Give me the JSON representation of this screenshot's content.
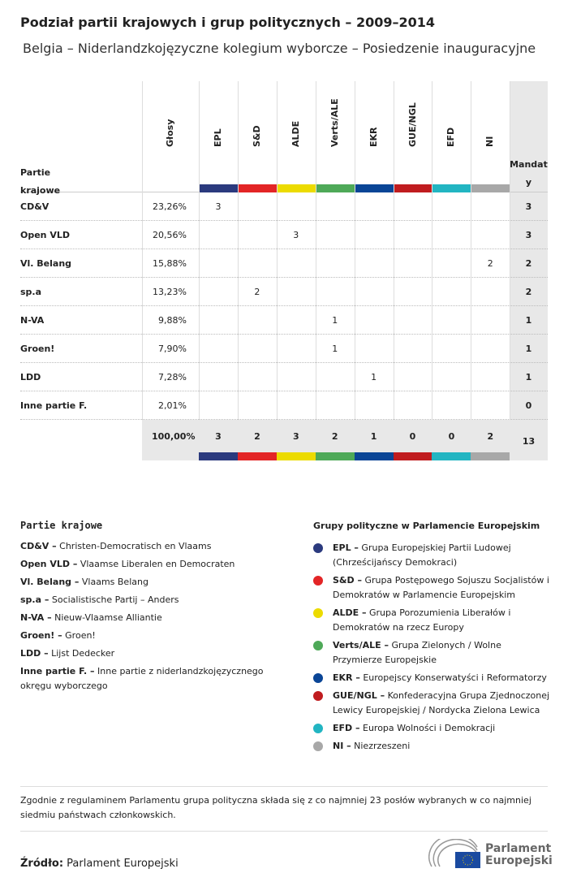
{
  "title": "Podział partii krajowych i grup politycznych – 2009–2014",
  "subtitle": "Belgia – Niderlandzkojęzyczne kolegium wyborcze – Posiedzenie inauguracyjne",
  "table": {
    "col_party": "Partie krajowe",
    "col_votes": "Głosy",
    "col_seats": "Mandaty",
    "groups": [
      {
        "name": "EPL",
        "color": "#2b3a7e"
      },
      {
        "name": "S&D",
        "color": "#e32526"
      },
      {
        "name": "ALDE",
        "color": "#ecdb00"
      },
      {
        "name": "Verts/ALE",
        "color": "#4ea958"
      },
      {
        "name": "EKR",
        "color": "#0a4596"
      },
      {
        "name": "GUE/NGL",
        "color": "#c01c1f"
      },
      {
        "name": "EFD",
        "color": "#22b5c2"
      },
      {
        "name": "NI",
        "color": "#a8a8a8"
      }
    ],
    "rows": [
      {
        "party": "CD&V",
        "votes": "23,26%",
        "cells": [
          "3",
          "",
          "",
          "",
          "",
          "",
          "",
          ""
        ],
        "seats": "3"
      },
      {
        "party": "Open VLD",
        "votes": "20,56%",
        "cells": [
          "",
          "",
          "3",
          "",
          "",
          "",
          "",
          ""
        ],
        "seats": "3"
      },
      {
        "party": "Vl. Belang",
        "votes": "15,88%",
        "cells": [
          "",
          "",
          "",
          "",
          "",
          "",
          "",
          "2"
        ],
        "seats": "2"
      },
      {
        "party": "sp.a",
        "votes": "13,23%",
        "cells": [
          "",
          "2",
          "",
          "",
          "",
          "",
          "",
          ""
        ],
        "seats": "2"
      },
      {
        "party": "N-VA",
        "votes": "9,88%",
        "cells": [
          "",
          "",
          "",
          "1",
          "",
          "",
          "",
          ""
        ],
        "seats": "1"
      },
      {
        "party": "Groen!",
        "votes": "7,90%",
        "cells": [
          "",
          "",
          "",
          "1",
          "",
          "",
          "",
          ""
        ],
        "seats": "1"
      },
      {
        "party": "LDD",
        "votes": "7,28%",
        "cells": [
          "",
          "",
          "",
          "",
          "1",
          "",
          "",
          ""
        ],
        "seats": "1"
      },
      {
        "party": "Inne partie F.",
        "votes": "2,01%",
        "cells": [
          "",
          "",
          "",
          "",
          "",
          "",
          "",
          ""
        ],
        "seats": "0"
      }
    ],
    "totals": {
      "votes": "100,00%",
      "cells": [
        "3",
        "2",
        "3",
        "2",
        "1",
        "0",
        "0",
        "2"
      ],
      "seats": "13"
    }
  },
  "legend_parties": {
    "title": "Partie krajowe",
    "items": [
      {
        "abbr": "CD&V –",
        "name": "Christen-Democratisch en Vlaams"
      },
      {
        "abbr": "Open VLD –",
        "name": "Vlaamse Liberalen en Democraten"
      },
      {
        "abbr": "Vl. Belang –",
        "name": "Vlaams Belang"
      },
      {
        "abbr": "sp.a –",
        "name": "Socialistische Partij – Anders"
      },
      {
        "abbr": "N-VA –",
        "name": "Nieuw-Vlaamse Alliantie"
      },
      {
        "abbr": "Groen! –",
        "name": "Groen!"
      },
      {
        "abbr": "LDD –",
        "name": "Lijst Dedecker"
      },
      {
        "abbr": "Inne partie F. –",
        "name": "Inne partie z niderlandzkojęzycznego okręgu wyborczego"
      }
    ]
  },
  "legend_groups": {
    "title": "Grupy polityczne w Parlamencie Europejskim",
    "items": [
      {
        "abbr": "EPL –",
        "name": "Grupa Europejskiej Partii Ludowej (Chrześcijańscy Demokraci)",
        "color": "#2b3a7e"
      },
      {
        "abbr": "S&D –",
        "name": "Grupa Postępowego Sojuszu Socjalistów i Demokratów w Parlamencie Europejskim",
        "color": "#e32526"
      },
      {
        "abbr": "ALDE –",
        "name": "Grupa Porozumienia Liberałów i Demokratów na rzecz Europy",
        "color": "#ecdb00"
      },
      {
        "abbr": "Verts/ALE –",
        "name": "Grupa Zielonych / Wolne Przymierze Europejskie",
        "color": "#4ea958"
      },
      {
        "abbr": "EKR –",
        "name": "Europejscy Konserwatyści i Reformatorzy",
        "color": "#0a4596"
      },
      {
        "abbr": "GUE/NGL –",
        "name": "Konfederacyjna Grupa Zjednoczonej Lewicy Europejskiej / Nordycka Zielona Lewica",
        "color": "#c01c1f"
      },
      {
        "abbr": "EFD –",
        "name": "Europa Wolności i Demokracji",
        "color": "#22b5c2"
      },
      {
        "abbr": "NI –",
        "name": "Niezrzeszeni",
        "color": "#a8a8a8"
      }
    ]
  },
  "note": "Zgodnie z regulaminem Parlamentu grupa polityczna składa się z co najmniej 23 posłów wybranych w co najmniej siedmiu państwach członkowskich.",
  "source_label": "Źródło:",
  "source": "Parlament Europejski",
  "logo_text": [
    "Parlament",
    "Europejski"
  ]
}
